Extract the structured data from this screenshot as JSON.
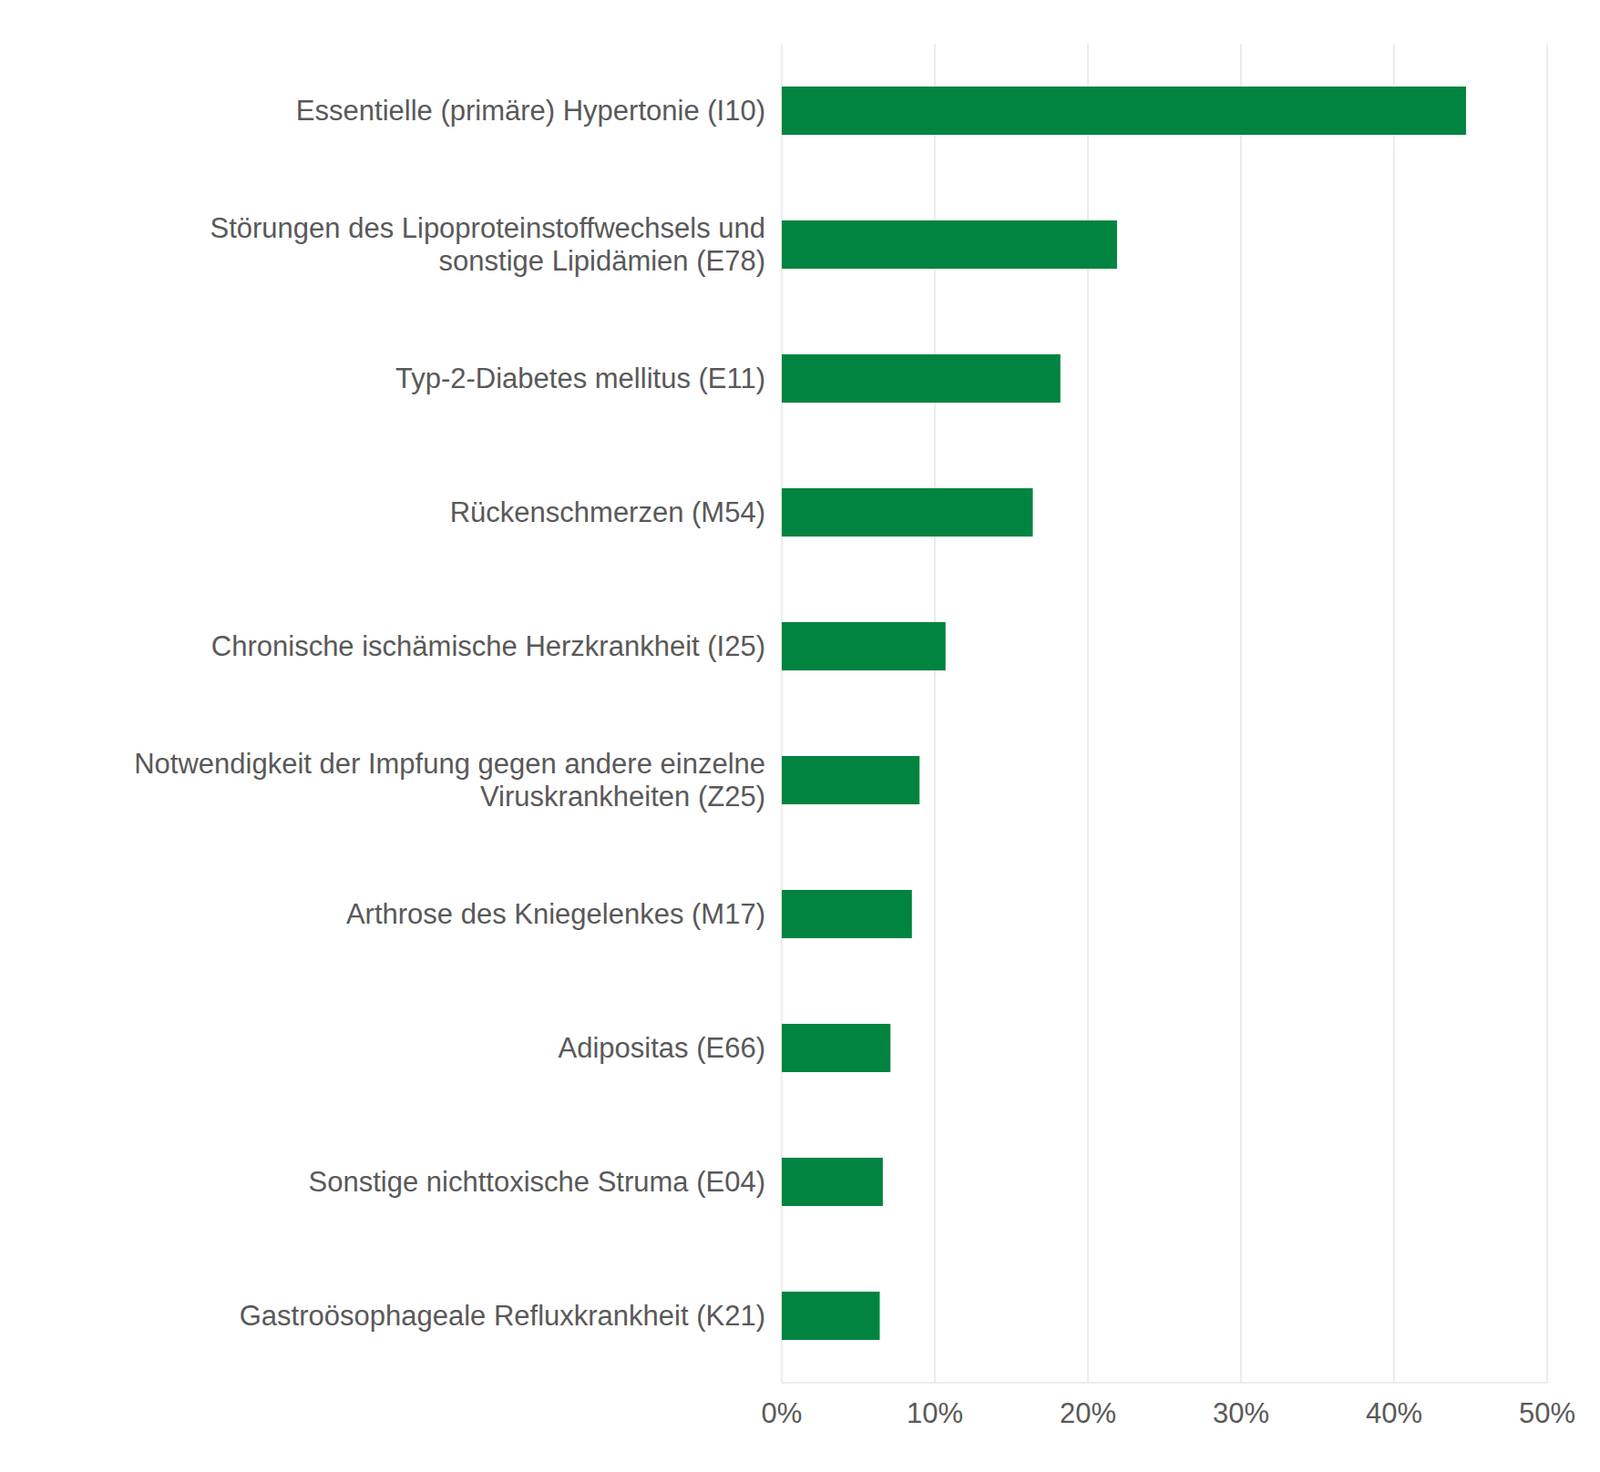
{
  "chart_data": {
    "type": "bar",
    "orientation": "horizontal",
    "categories": [
      "Essentielle (primäre) Hypertonie (I10)",
      "Störungen des Lipoproteinstoffwechsels und sonstige Lipidämien (E78)",
      "Typ-2-Diabetes mellitus (E11)",
      "Rückenschmerzen (M54)",
      "Chronische ischämische Herzkrankheit (I25)",
      "Notwendigkeit der Impfung gegen andere einzelne Viruskrankheiten (Z25)",
      "Arthrose des Kniegelenkes (M17)",
      "Adipositas (E66)",
      "Sonstige nichttoxische Struma (E04)",
      "Gastroösophageale Refluxkrankheit (K21)"
    ],
    "values": [
      44.7,
      21.9,
      18.2,
      16.4,
      10.7,
      9.0,
      8.5,
      7.1,
      6.6,
      6.4
    ],
    "color": "#00843f",
    "xlim": [
      0,
      50
    ],
    "xticks": [
      {
        "value": 0,
        "label": "0%"
      },
      {
        "value": 10,
        "label": "10%"
      },
      {
        "value": 20,
        "label": "20%"
      },
      {
        "value": 30,
        "label": "30%"
      },
      {
        "value": 40,
        "label": "40%"
      },
      {
        "value": 50,
        "label": "50%"
      }
    ],
    "grid": true
  }
}
